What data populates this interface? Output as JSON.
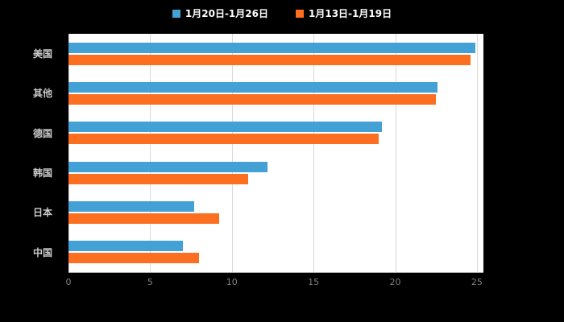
{
  "chart_data": {
    "type": "bar",
    "orientation": "horizontal",
    "categories": [
      "美国",
      "其他",
      "德国",
      "韩国",
      "日本",
      "中国"
    ],
    "series": [
      {
        "name": "1月20日-1月26日",
        "color": "#44a1d5",
        "values": [
          24.9,
          22.6,
          19.2,
          12.2,
          7.7,
          7.0
        ]
      },
      {
        "name": "1月13日-1月19日",
        "color": "#fc6e20",
        "values": [
          24.6,
          22.5,
          19.0,
          11.0,
          9.2,
          8.0
        ]
      }
    ],
    "x_ticks": [
      0,
      5,
      10,
      15,
      20,
      25
    ],
    "x_max": 25.4,
    "grid": true,
    "legend_position": "top",
    "title": "",
    "xlabel": "",
    "ylabel": ""
  },
  "colors": {
    "background": "#000000",
    "plot_background": "#ffffff",
    "gridline": "#d9d9d9",
    "category_label": "#cccccc",
    "tick_label": "#808080"
  }
}
